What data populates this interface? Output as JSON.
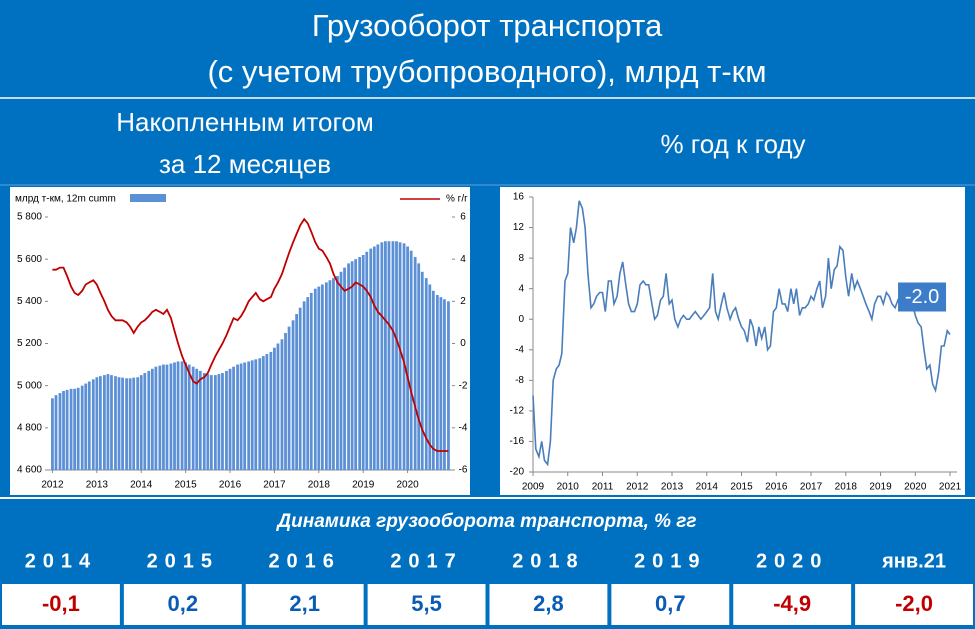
{
  "header": {
    "title_lines": [
      "Грузооборот транспорта",
      "(с учетом трубопроводного), млрд т-км"
    ]
  },
  "chart_data": [
    {
      "type": "bar_line",
      "subtitle_lines": [
        "Накопленным итогом",
        "за 12 месяцев"
      ],
      "x": [
        2012,
        2012.08,
        2012.17,
        2012.25,
        2012.33,
        2012.42,
        2012.5,
        2012.58,
        2012.67,
        2012.75,
        2012.83,
        2012.92,
        2013,
        2013.08,
        2013.17,
        2013.25,
        2013.33,
        2013.42,
        2013.5,
        2013.58,
        2013.67,
        2013.75,
        2013.83,
        2013.92,
        2014,
        2014.08,
        2014.17,
        2014.25,
        2014.33,
        2014.42,
        2014.5,
        2014.58,
        2014.67,
        2014.75,
        2014.83,
        2014.92,
        2015,
        2015.08,
        2015.17,
        2015.25,
        2015.33,
        2015.42,
        2015.5,
        2015.58,
        2015.67,
        2015.75,
        2015.83,
        2015.92,
        2016,
        2016.08,
        2016.17,
        2016.25,
        2016.33,
        2016.42,
        2016.5,
        2016.58,
        2016.67,
        2016.75,
        2016.83,
        2016.92,
        2017,
        2017.08,
        2017.17,
        2017.25,
        2017.33,
        2017.42,
        2017.5,
        2017.58,
        2017.67,
        2017.75,
        2017.83,
        2017.92,
        2018,
        2018.08,
        2018.17,
        2018.25,
        2018.33,
        2018.42,
        2018.5,
        2018.58,
        2018.67,
        2018.75,
        2018.83,
        2018.92,
        2019,
        2019.08,
        2019.17,
        2019.25,
        2019.33,
        2019.42,
        2019.5,
        2019.58,
        2019.67,
        2019.75,
        2019.83,
        2019.92,
        2020,
        2020.08,
        2020.17,
        2020.25,
        2020.33,
        2020.42,
        2020.5,
        2020.58,
        2020.67,
        2020.75,
        2020.83,
        2020.92
      ],
      "xlim": [
        2011.9,
        2021
      ],
      "xticks": [
        2012,
        2013,
        2014,
        2015,
        2016,
        2017,
        2018,
        2019,
        2020
      ],
      "ylim": [
        4600,
        5800
      ],
      "yticks": [
        {
          "value": 4600,
          "label": "4 600"
        },
        {
          "value": 4800,
          "label": "4 800"
        },
        {
          "value": 5000,
          "label": "5 000"
        },
        {
          "value": 5200,
          "label": "5 200"
        },
        {
          "value": 5400,
          "label": "5 400"
        },
        {
          "value": 5600,
          "label": "5 600"
        },
        {
          "value": 5800,
          "label": "5 800"
        }
      ],
      "y2lim": [
        -6,
        6
      ],
      "y2ticks": [
        -6,
        -4,
        -2,
        0,
        2,
        4,
        6
      ],
      "series": [
        {
          "name": "млрд т-км, 12m cumm",
          "color": "#5b8fd6",
          "values": [
            4940,
            4955,
            4965,
            4975,
            4980,
            4985,
            4985,
            4990,
            5000,
            5010,
            5020,
            5030,
            5040,
            5045,
            5050,
            5055,
            5050,
            5045,
            5040,
            5038,
            5035,
            5035,
            5038,
            5040,
            5050,
            5060,
            5070,
            5080,
            5090,
            5095,
            5100,
            5100,
            5105,
            5110,
            5115,
            5115,
            5110,
            5100,
            5090,
            5080,
            5070,
            5060,
            5055,
            5050,
            5050,
            5055,
            5060,
            5070,
            5080,
            5090,
            5100,
            5105,
            5110,
            5115,
            5120,
            5125,
            5130,
            5140,
            5150,
            5160,
            5180,
            5200,
            5220,
            5250,
            5280,
            5310,
            5340,
            5370,
            5400,
            5420,
            5440,
            5460,
            5470,
            5480,
            5490,
            5500,
            5510,
            5520,
            5540,
            5560,
            5580,
            5590,
            5600,
            5610,
            5620,
            5635,
            5650,
            5660,
            5670,
            5680,
            5685,
            5685,
            5685,
            5685,
            5680,
            5675,
            5660,
            5640,
            5610,
            5580,
            5540,
            5510,
            5480,
            5450,
            5430,
            5420,
            5410,
            5400
          ]
        },
        {
          "name": "% г/г",
          "color": "#c00000",
          "axis": "y2",
          "values": [
            3.5,
            3.5,
            3.6,
            3.6,
            3.2,
            2.7,
            2.4,
            2.3,
            2.5,
            2.8,
            2.9,
            3.0,
            2.8,
            2.4,
            2.0,
            1.6,
            1.3,
            1.1,
            1.1,
            1.1,
            1.0,
            0.8,
            0.5,
            0.8,
            1.0,
            1.1,
            1.3,
            1.5,
            1.6,
            1.5,
            1.4,
            1.6,
            1.2,
            0.6,
            0.0,
            -0.6,
            -1.0,
            -1.4,
            -1.8,
            -1.9,
            -1.7,
            -1.6,
            -1.4,
            -1.0,
            -0.6,
            -0.3,
            0.0,
            0.4,
            0.8,
            1.2,
            1.1,
            1.3,
            1.6,
            2.0,
            2.2,
            2.4,
            2.1,
            2.0,
            2.1,
            2.2,
            2.6,
            2.9,
            3.3,
            3.8,
            4.3,
            4.8,
            5.2,
            5.6,
            5.9,
            5.7,
            5.3,
            4.8,
            4.5,
            4.4,
            4.1,
            3.8,
            3.3,
            2.9,
            2.7,
            2.5,
            2.6,
            2.7,
            2.9,
            2.8,
            2.7,
            2.5,
            2.2,
            1.8,
            1.5,
            1.3,
            1.1,
            0.9,
            0.6,
            0.2,
            -0.3,
            -0.9,
            -1.6,
            -2.3,
            -3.0,
            -3.6,
            -4.1,
            -4.5,
            -4.8,
            -5.0,
            -5.1,
            -5.1,
            -5.1,
            -5.1
          ]
        }
      ]
    },
    {
      "type": "line",
      "title": "% год к году",
      "x": [
        2009,
        2009.08,
        2009.17,
        2009.25,
        2009.33,
        2009.42,
        2009.5,
        2009.58,
        2009.67,
        2009.75,
        2009.83,
        2009.92,
        2010,
        2010.08,
        2010.17,
        2010.25,
        2010.33,
        2010.42,
        2010.5,
        2010.58,
        2010.67,
        2010.75,
        2010.83,
        2010.92,
        2011,
        2011.08,
        2011.17,
        2011.25,
        2011.33,
        2011.42,
        2011.5,
        2011.58,
        2011.67,
        2011.75,
        2011.83,
        2011.92,
        2012,
        2012.08,
        2012.17,
        2012.25,
        2012.33,
        2012.42,
        2012.5,
        2012.58,
        2012.67,
        2012.75,
        2012.83,
        2012.92,
        2013,
        2013.08,
        2013.17,
        2013.25,
        2013.33,
        2013.42,
        2013.5,
        2013.58,
        2013.67,
        2013.75,
        2013.83,
        2013.92,
        2014,
        2014.08,
        2014.17,
        2014.25,
        2014.33,
        2014.42,
        2014.5,
        2014.58,
        2014.67,
        2014.75,
        2014.83,
        2014.92,
        2015,
        2015.08,
        2015.17,
        2015.25,
        2015.33,
        2015.42,
        2015.5,
        2015.58,
        2015.67,
        2015.75,
        2015.83,
        2015.92,
        2016,
        2016.08,
        2016.17,
        2016.25,
        2016.33,
        2016.42,
        2016.5,
        2016.58,
        2016.67,
        2016.75,
        2016.83,
        2016.92,
        2017,
        2017.08,
        2017.17,
        2017.25,
        2017.33,
        2017.42,
        2017.5,
        2017.58,
        2017.67,
        2017.75,
        2017.83,
        2017.92,
        2018,
        2018.08,
        2018.17,
        2018.25,
        2018.33,
        2018.42,
        2018.5,
        2018.58,
        2018.67,
        2018.75,
        2018.83,
        2018.92,
        2019,
        2019.08,
        2019.17,
        2019.25,
        2019.33,
        2019.42,
        2019.5,
        2019.58,
        2019.67,
        2019.75,
        2019.83,
        2019.92,
        2020,
        2020.08,
        2020.17,
        2020.25,
        2020.33,
        2020.42,
        2020.5,
        2020.58,
        2020.67,
        2020.75,
        2020.83,
        2020.92,
        2021
      ],
      "xlim": [
        2009,
        2021.2
      ],
      "xticks": [
        2009,
        2010,
        2011,
        2012,
        2013,
        2014,
        2015,
        2016,
        2017,
        2018,
        2019,
        2020,
        2021
      ],
      "ylim": [
        -20,
        16
      ],
      "yticks": [
        -20,
        -16,
        -12,
        -8,
        -4,
        0,
        4,
        8,
        12,
        16
      ],
      "series": [
        {
          "color": "#4a7ebb",
          "values": [
            -10,
            -17,
            -18,
            -16,
            -18.5,
            -19,
            -16,
            -8,
            -6.5,
            -6,
            -4.5,
            5,
            6,
            12,
            10,
            12,
            15.5,
            14.5,
            12,
            6,
            1.5,
            2,
            3,
            3.5,
            3.5,
            1,
            5,
            5,
            2,
            3,
            6,
            7.5,
            4.5,
            2,
            1,
            1,
            2,
            4.5,
            5,
            4.5,
            4.5,
            2,
            0,
            0.5,
            2.5,
            3,
            6,
            2,
            2.5,
            0,
            -1,
            0,
            0.5,
            0,
            0,
            0.5,
            1,
            0.5,
            0,
            0.5,
            1,
            1.5,
            6,
            1,
            0,
            2,
            3.5,
            1.5,
            0,
            1,
            1.5,
            0,
            -1,
            -1.5,
            -3,
            0,
            -1,
            -3.5,
            -1,
            -2.5,
            -1,
            -4,
            -3.5,
            1,
            1.5,
            4,
            2,
            2,
            1,
            4,
            2,
            4,
            0.5,
            1.5,
            1.5,
            2,
            3,
            2.5,
            4,
            5,
            1.5,
            3,
            8,
            4,
            6.5,
            7,
            9.5,
            9,
            5.5,
            3,
            6,
            4,
            5,
            4,
            3,
            2,
            1,
            0,
            2,
            3,
            3,
            2,
            3.5,
            3,
            2,
            1.5,
            2.5,
            2,
            3,
            2,
            2.5,
            2,
            0.5,
            -0.5,
            -1,
            -4,
            -6.5,
            -6,
            -8.5,
            -9.3,
            -7,
            -3.5,
            -3.5,
            -1.5,
            -2.0
          ]
        }
      ],
      "annotation": "-2.0"
    }
  ],
  "table": {
    "title": "Динамика грузооборота транспорта, % гг",
    "header": [
      "2014",
      "2015",
      "2016",
      "2017",
      "2018",
      "2019",
      "2020",
      "янв.21"
    ],
    "rows": [
      [
        "-0,1",
        "0,2",
        "2,1",
        "5,5",
        "2,8",
        "0,7",
        "-4,9",
        "-2,0"
      ]
    ]
  }
}
